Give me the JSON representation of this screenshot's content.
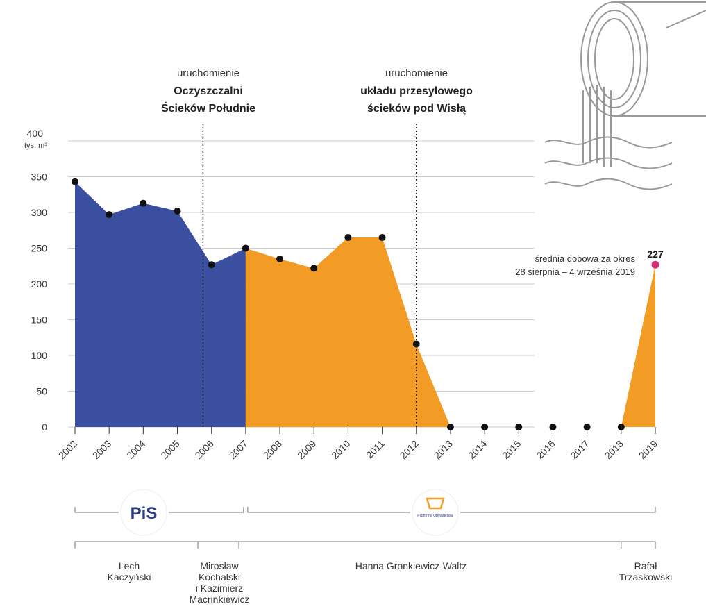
{
  "chart_data": {
    "type": "area",
    "x": [
      2002,
      2003,
      2004,
      2005,
      2006,
      2007,
      2008,
      2009,
      2010,
      2011,
      2012,
      2013,
      2014,
      2015,
      2016,
      2017,
      2018,
      2019
    ],
    "values": [
      343,
      297,
      313,
      302,
      227,
      250,
      235,
      222,
      265,
      265,
      116,
      0,
      0,
      0,
      0,
      0,
      0,
      227
    ],
    "ylim": [
      0,
      400
    ],
    "yticks": [
      0,
      50,
      100,
      150,
      200,
      250,
      300,
      350,
      400
    ],
    "ylabel": "tys. m³",
    "segments": [
      {
        "name": "PiS",
        "from": 2002,
        "to": 2007,
        "color": "#3a4fa0"
      },
      {
        "name": "Platforma Obywatelska",
        "from": 2007,
        "to": 2019,
        "color": "#f29b25"
      }
    ],
    "annotations": [
      {
        "x": 2005.75,
        "line1": "uruchomienie",
        "line2": "Oczyszczalni",
        "line3": "Ścieków Południe"
      },
      {
        "x": 2012,
        "line1": "uruchomienie",
        "line2": "układu przesyłowego",
        "line3": "ścieków pod Wisłą"
      }
    ],
    "highlight": {
      "x": 2019,
      "value": 227,
      "label": "227",
      "note_line1": "średnia dobowa za okres",
      "note_line2": "28 sierpnia – 4 września 2019",
      "color": "#d3317a"
    },
    "parties": [
      {
        "label": "PiS",
        "from": 2002,
        "to": 2007
      },
      {
        "label": "Platforma Obywatelska",
        "from": 2007,
        "to": 2019
      }
    ],
    "mayors": [
      {
        "lines": [
          "Lech",
          "Kaczyński"
        ],
        "from": 2002,
        "to": 2005.6
      },
      {
        "lines": [
          "Mirosław",
          "Kochalski",
          "i Kazimierz",
          "Macrinkiewicz"
        ],
        "from": 2005.6,
        "to": 2006.8
      },
      {
        "lines": [
          "Hanna Gronkiewicz-Waltz"
        ],
        "from": 2006.8,
        "to": 2018
      },
      {
        "lines": [
          "Rafał",
          "Trzaskowski"
        ],
        "from": 2018,
        "to": 2019
      }
    ]
  },
  "colors": {
    "pis": "#3a4fa0",
    "po": "#f29b25",
    "grid": "#cccccc",
    "dot": "#111111",
    "highlight": "#d3317a"
  }
}
